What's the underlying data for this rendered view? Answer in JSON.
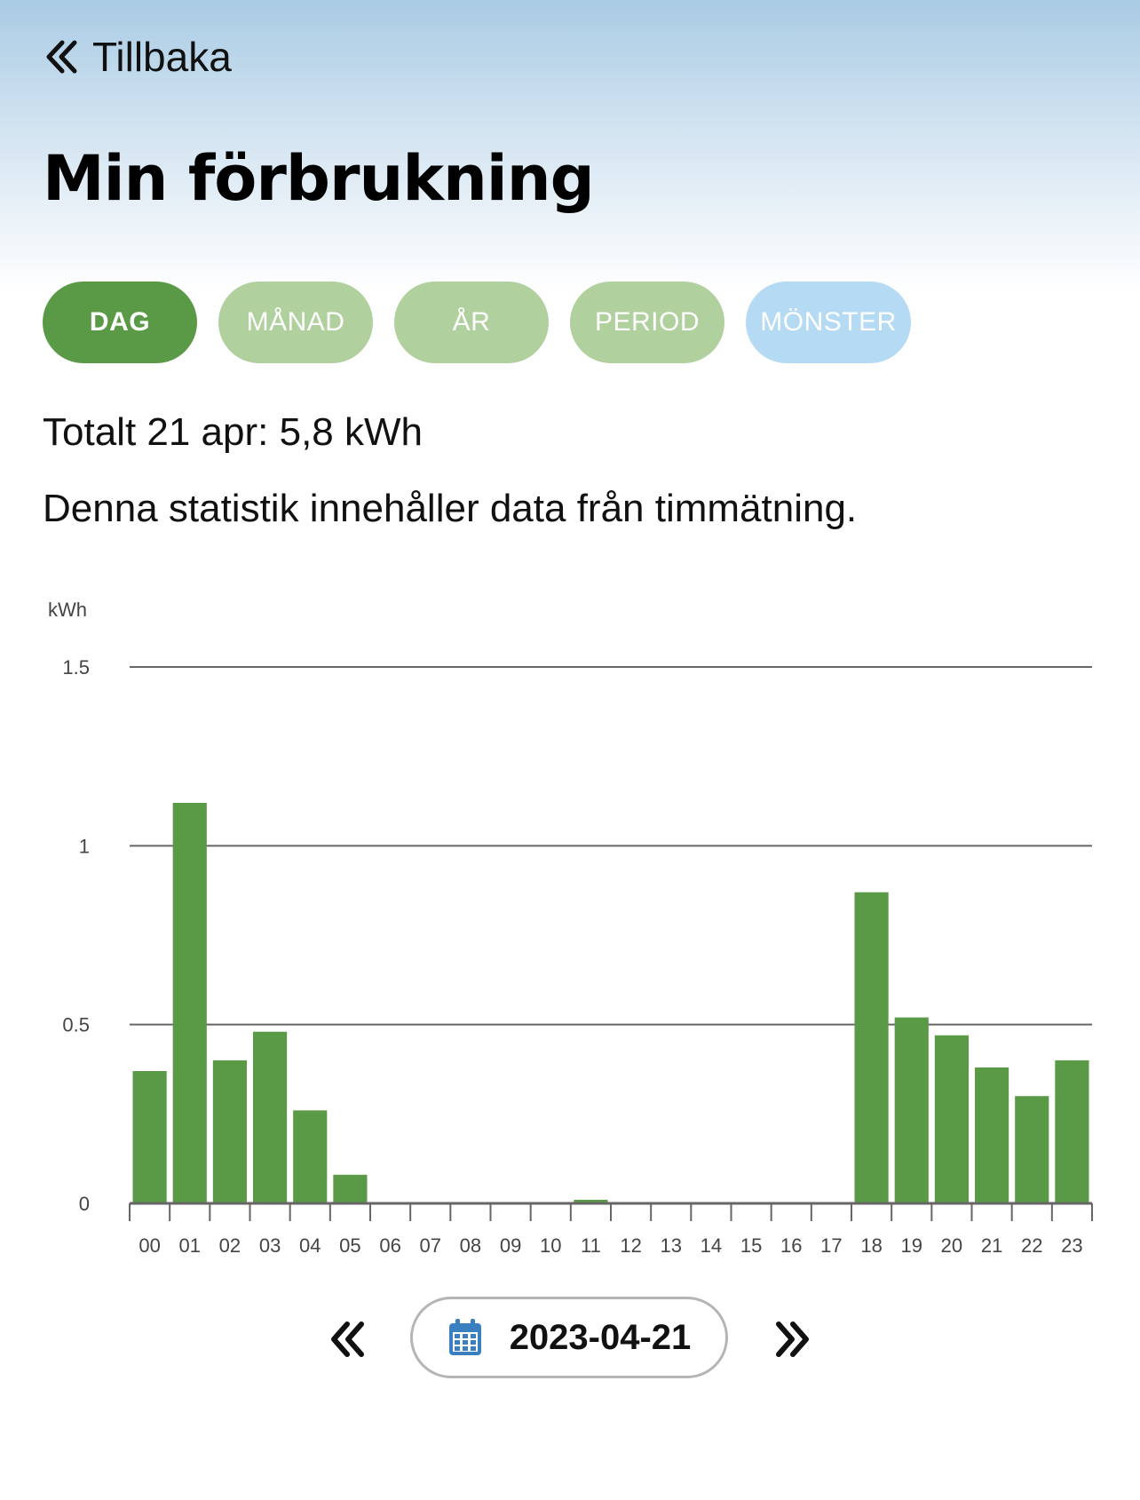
{
  "nav": {
    "back_label": "Tillbaka"
  },
  "page": {
    "title": "Min förbrukning"
  },
  "tabs": [
    {
      "label": "DAG",
      "state": "active"
    },
    {
      "label": "MÅNAD",
      "state": "inactive"
    },
    {
      "label": "ÅR",
      "state": "inactive"
    },
    {
      "label": "PERIOD",
      "state": "inactive"
    },
    {
      "label": "MÖNSTER",
      "state": "inactive"
    }
  ],
  "summary": {
    "total": "Totalt 21 apr: 5,8 kWh",
    "info": "Denna statistik innehåller data från timmätning."
  },
  "colors": {
    "bar": "#5a9a46",
    "tab_active": "#5a9a46",
    "tab_inactive": "#b0d09d",
    "tab_pattern": "#b5daf4",
    "calendar_icon": "#3a7fc0"
  },
  "chart_data": {
    "type": "bar",
    "unit_label": "kWh",
    "categories": [
      "00",
      "01",
      "02",
      "03",
      "04",
      "05",
      "06",
      "07",
      "08",
      "09",
      "10",
      "11",
      "12",
      "13",
      "14",
      "15",
      "16",
      "17",
      "18",
      "19",
      "20",
      "21",
      "22",
      "23"
    ],
    "values": [
      0.37,
      1.12,
      0.4,
      0.48,
      0.26,
      0.08,
      0,
      0,
      0,
      0,
      0,
      0.01,
      0,
      0,
      0,
      0,
      0,
      0,
      0.87,
      0.52,
      0.47,
      0.38,
      0.3,
      0.4
    ],
    "yticks": [
      "0",
      "0.5",
      "1",
      "1.5"
    ],
    "ylim": [
      0,
      1.5
    ],
    "grid": true
  },
  "date_nav": {
    "date": "2023-04-21",
    "prev_icon": "double-chevron-left-icon",
    "next_icon": "double-chevron-right-icon",
    "calendar_icon": "calendar-icon"
  }
}
